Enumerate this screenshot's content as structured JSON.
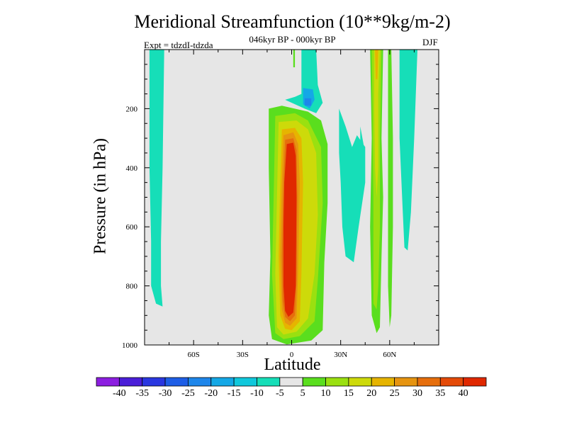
{
  "chart_data": {
    "type": "heatmap",
    "title": "Meridional Streamfunction (10**9kg/m-2)",
    "subtitle": "046kyr BP - 000kyr BP",
    "left_label": "Expt = tdzdI-tdzda",
    "right_label": "DJF",
    "xlabel": "Latitude",
    "ylabel": "Pressure (in hPa)",
    "xlim": [
      -90,
      90
    ],
    "ylim": [
      1000,
      0
    ],
    "x_ticks": [
      {
        "value": -60,
        "label": "60S"
      },
      {
        "value": -30,
        "label": "30S"
      },
      {
        "value": 0,
        "label": "0"
      },
      {
        "value": 30,
        "label": "30N"
      },
      {
        "value": 60,
        "label": "60N"
      }
    ],
    "y_ticks": [
      {
        "value": 200,
        "label": "200"
      },
      {
        "value": 400,
        "label": "400"
      },
      {
        "value": 600,
        "label": "600"
      },
      {
        "value": 800,
        "label": "800"
      },
      {
        "value": 1000,
        "label": "1000"
      }
    ],
    "colorbar": {
      "labels": [
        "-40",
        "-35",
        "-30",
        "-25",
        "-20",
        "-15",
        "-10",
        "-5",
        "5",
        "10",
        "15",
        "20",
        "25",
        "30",
        "35",
        "40"
      ],
      "colors": [
        "#8c1ee0",
        "#4a1ed8",
        "#2a37e0",
        "#1e5ee6",
        "#1e86ea",
        "#14a8e6",
        "#10c8dc",
        "#16deb8",
        "#e6e6e6",
        "#5ade1e",
        "#9ae010",
        "#cdda0a",
        "#e6b400",
        "#e69410",
        "#e66e0c",
        "#e44a08",
        "#e02800"
      ]
    },
    "background_color": "#e6e6e6",
    "regions": [
      {
        "level": -10,
        "color": "#16deb8",
        "points": [
          [
            -87,
            0
          ],
          [
            -78,
            0
          ],
          [
            -79,
            400
          ],
          [
            -80,
            650
          ],
          [
            -80,
            800
          ],
          [
            -79,
            870
          ],
          [
            -83,
            860
          ],
          [
            -86,
            800
          ],
          [
            -86,
            650
          ],
          [
            -87,
            400
          ]
        ]
      },
      {
        "level": -10,
        "color": "#16deb8",
        "points": [
          [
            6,
            0
          ],
          [
            15,
            0
          ],
          [
            16,
            120
          ],
          [
            19,
            180
          ],
          [
            15,
            215
          ],
          [
            8,
            200
          ],
          [
            4,
            190
          ],
          [
            -4,
            170
          ],
          [
            2,
            160
          ],
          [
            6,
            150
          ]
        ]
      },
      {
        "level": -15,
        "color": "#14a8e6",
        "points": [
          [
            7,
            130
          ],
          [
            13,
            135
          ],
          [
            14,
            170
          ],
          [
            11,
            200
          ],
          [
            7,
            185
          ]
        ]
      },
      {
        "level": -20,
        "color": "#1e86ea",
        "points": [
          [
            8,
            165
          ],
          [
            12,
            165
          ],
          [
            12,
            190
          ],
          [
            8,
            190
          ]
        ]
      },
      {
        "level": 5,
        "color": "#5ade1e",
        "points": [
          [
            1,
            0
          ],
          [
            2,
            0
          ],
          [
            2,
            60
          ],
          [
            1,
            60
          ]
        ]
      },
      {
        "level": -10,
        "color": "#16deb8",
        "points": [
          [
            29,
            200
          ],
          [
            33,
            260
          ],
          [
            37,
            330
          ],
          [
            40,
            290
          ],
          [
            45,
            330
          ],
          [
            45,
            450
          ],
          [
            41,
            600
          ],
          [
            38,
            720
          ],
          [
            33,
            700
          ],
          [
            31,
            600
          ],
          [
            30,
            450
          ],
          [
            29,
            350
          ]
        ]
      },
      {
        "level": 5,
        "color": "#5ade1e",
        "points": [
          [
            -14,
            200
          ],
          [
            -6,
            190
          ],
          [
            10,
            210
          ],
          [
            18,
            240
          ],
          [
            22,
            320
          ],
          [
            22,
            520
          ],
          [
            20,
            720
          ],
          [
            19,
            950
          ],
          [
            12,
            985
          ],
          [
            -3,
            998
          ],
          [
            -12,
            980
          ],
          [
            -14,
            900
          ],
          [
            -13,
            700
          ],
          [
            -14,
            400
          ]
        ]
      },
      {
        "level": 10,
        "color": "#9ae010",
        "points": [
          [
            -10,
            225
          ],
          [
            2,
            215
          ],
          [
            10,
            240
          ],
          [
            18,
            330
          ],
          [
            19,
            520
          ],
          [
            16,
            780
          ],
          [
            14,
            920
          ],
          [
            5,
            970
          ],
          [
            -5,
            980
          ],
          [
            -10,
            960
          ],
          [
            -12,
            760
          ],
          [
            -11,
            500
          ]
        ]
      },
      {
        "level": 15,
        "color": "#cdda0a",
        "points": [
          [
            -8,
            245
          ],
          [
            3,
            240
          ],
          [
            10,
            270
          ],
          [
            15,
            350
          ],
          [
            16,
            560
          ],
          [
            14,
            760
          ],
          [
            10,
            910
          ],
          [
            3,
            955
          ],
          [
            -5,
            965
          ],
          [
            -9,
            940
          ],
          [
            -10,
            760
          ],
          [
            -9,
            500
          ]
        ]
      },
      {
        "level": 20,
        "color": "#e6b400",
        "points": [
          [
            -6,
            270
          ],
          [
            2,
            265
          ],
          [
            6,
            300
          ],
          [
            7,
            450
          ],
          [
            6,
            760
          ],
          [
            5,
            920
          ],
          [
            0,
            950
          ],
          [
            -4,
            945
          ],
          [
            -7,
            900
          ],
          [
            -8,
            700
          ],
          [
            -7,
            450
          ]
        ]
      },
      {
        "level": 25,
        "color": "#e69410",
        "points": [
          [
            -5,
            290
          ],
          [
            1,
            280
          ],
          [
            4,
            320
          ],
          [
            5,
            450
          ],
          [
            4,
            750
          ],
          [
            3,
            910
          ],
          [
            -1,
            935
          ],
          [
            -4,
            925
          ],
          [
            -6,
            880
          ],
          [
            -7,
            700
          ],
          [
            -6,
            450
          ]
        ]
      },
      {
        "level": 30,
        "color": "#e66e0c",
        "points": [
          [
            -4,
            305
          ],
          [
            1,
            300
          ],
          [
            3,
            340
          ],
          [
            3.5,
            500
          ],
          [
            3,
            780
          ],
          [
            2,
            900
          ],
          [
            -1,
            920
          ],
          [
            -4,
            905
          ],
          [
            -5.5,
            850
          ],
          [
            -6,
            700
          ],
          [
            -5,
            450
          ]
        ]
      },
      {
        "level": 35,
        "color": "#e02800",
        "points": [
          [
            -3,
            320
          ],
          [
            1,
            315
          ],
          [
            2.5,
            360
          ],
          [
            3,
            500
          ],
          [
            2.5,
            800
          ],
          [
            1,
            890
          ],
          [
            -2,
            905
          ],
          [
            -4,
            885
          ],
          [
            -5,
            800
          ],
          [
            -5,
            600
          ],
          [
            -4.5,
            450
          ]
        ]
      },
      {
        "level": 5,
        "color": "#5ade1e",
        "points": [
          [
            48,
            0
          ],
          [
            56,
            0
          ],
          [
            55,
            300
          ],
          [
            56,
            500
          ],
          [
            55,
            700
          ],
          [
            54,
            940
          ],
          [
            52,
            960
          ],
          [
            49,
            900
          ],
          [
            48,
            600
          ],
          [
            49,
            300
          ]
        ]
      },
      {
        "level": 10,
        "color": "#9ae010",
        "points": [
          [
            49,
            0
          ],
          [
            55,
            0
          ],
          [
            54,
            300
          ],
          [
            54,
            600
          ],
          [
            53,
            800
          ],
          [
            52,
            880
          ],
          [
            50,
            860
          ],
          [
            50,
            500
          ],
          [
            49.5,
            200
          ]
        ]
      },
      {
        "level": 15,
        "color": "#cdda0a",
        "points": [
          [
            50.5,
            0
          ],
          [
            54,
            0
          ],
          [
            53,
            150
          ],
          [
            53,
            400
          ],
          [
            52,
            500
          ],
          [
            51,
            400
          ],
          [
            50.5,
            200
          ]
        ]
      },
      {
        "level": 20,
        "color": "#e6b400",
        "points": [
          [
            51,
            0
          ],
          [
            53,
            0
          ],
          [
            52.5,
            100
          ],
          [
            51.5,
            100
          ]
        ]
      },
      {
        "level": 5,
        "color": "#5ade1e",
        "points": [
          [
            59,
            0
          ],
          [
            61,
            0
          ],
          [
            62,
            300
          ],
          [
            62,
            600
          ],
          [
            61,
            900
          ],
          [
            60,
            940
          ],
          [
            59,
            800
          ],
          [
            59,
            400
          ]
        ]
      },
      {
        "level": -10,
        "color": "#16deb8",
        "points": [
          [
            66,
            0
          ],
          [
            77,
            0
          ],
          [
            75,
            300
          ],
          [
            73,
            550
          ],
          [
            71,
            680
          ],
          [
            69,
            670
          ],
          [
            68,
            550
          ],
          [
            66,
            300
          ]
        ]
      },
      {
        "level": -5,
        "color": "#16deb8",
        "points": [
          [
            42,
            260
          ],
          [
            44,
            320
          ],
          [
            43,
            400
          ],
          [
            42,
            380
          ]
        ]
      }
    ]
  }
}
